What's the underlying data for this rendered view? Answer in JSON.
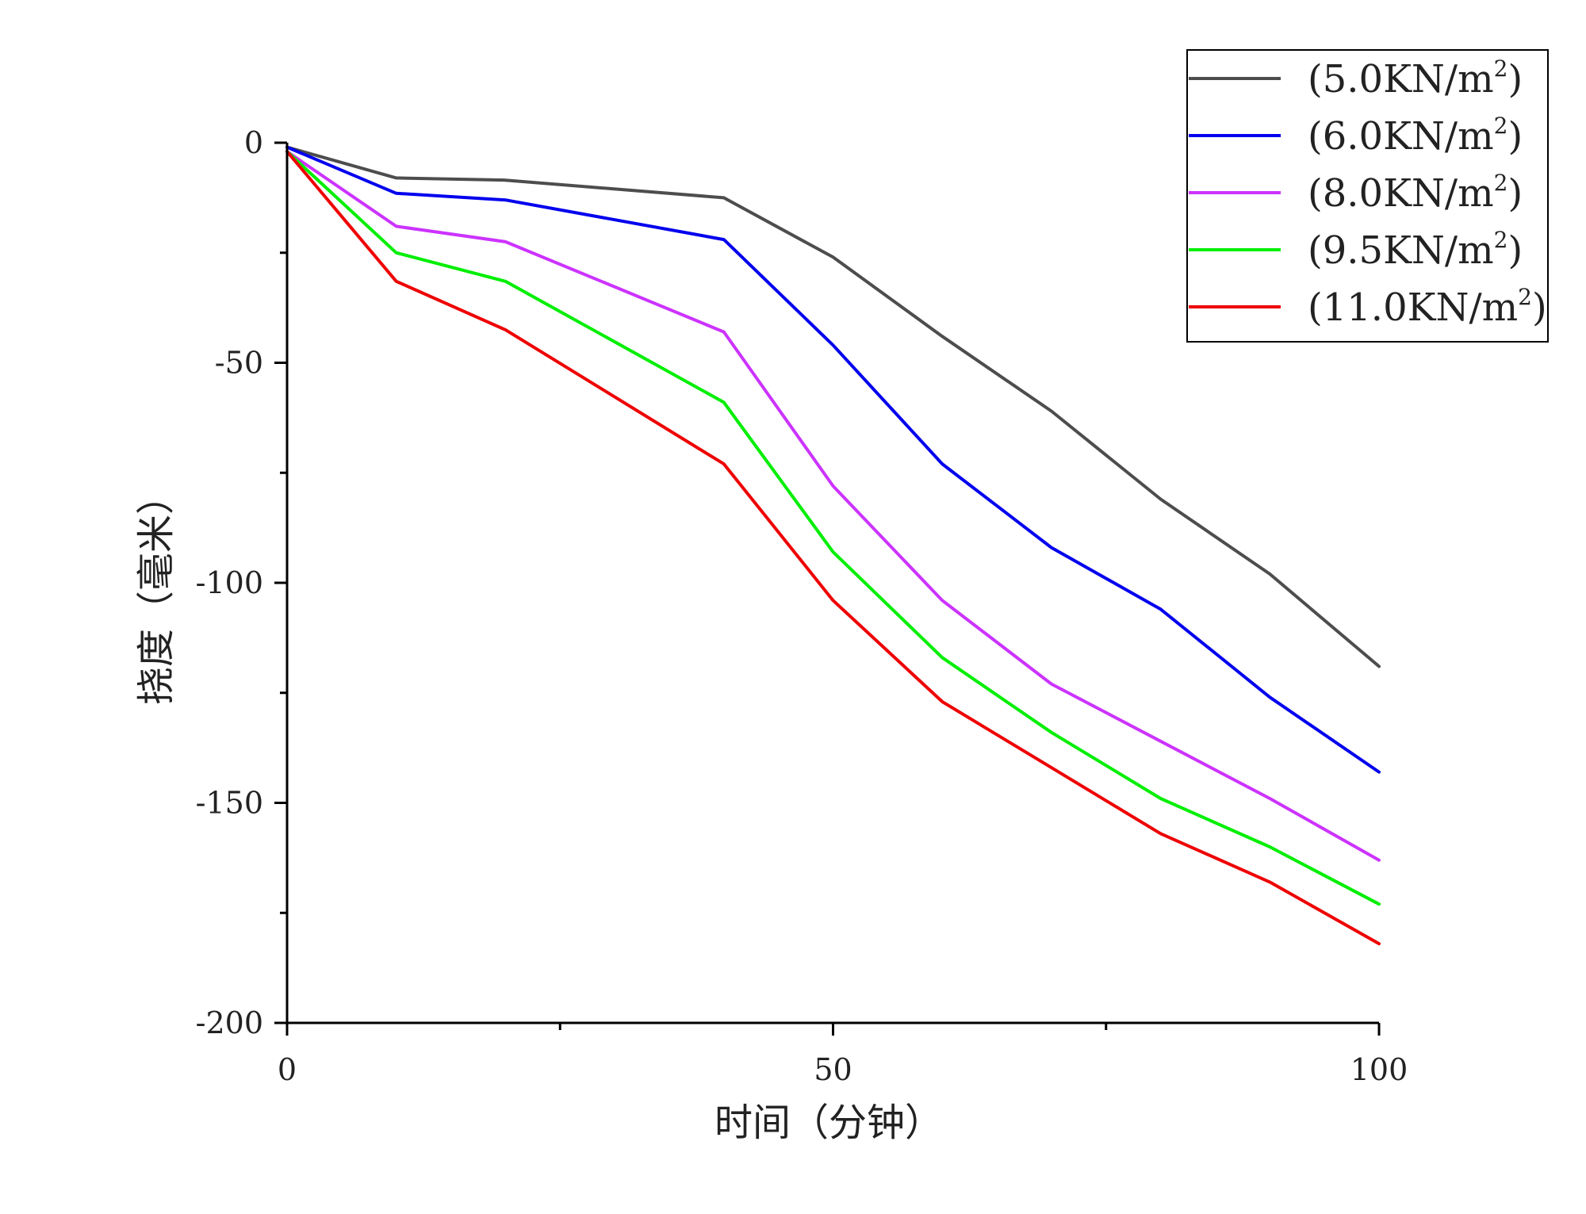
{
  "chart_data": {
    "type": "line",
    "title": "",
    "xlabel": "时间（分钟）",
    "ylabel": "挠度（毫米）",
    "xlim": [
      0,
      100
    ],
    "ylim": [
      -200,
      0
    ],
    "x_ticks": [
      0,
      50,
      100
    ],
    "y_ticks": [
      0,
      -50,
      -100,
      -150,
      -200
    ],
    "x_tick_labels": [
      "0",
      "50",
      "100"
    ],
    "y_tick_labels": [
      "0",
      "-50",
      "-100",
      "-150",
      "-200"
    ],
    "legend_position": "top-right",
    "legend_unit_base": "KN/m",
    "legend_unit_exp": "2",
    "x": [
      0,
      10,
      20,
      40,
      50,
      60,
      70,
      80,
      90,
      100
    ],
    "series": [
      {
        "name": "(5.0KN/m2)",
        "load": "5.0",
        "color": "#4d4d4d",
        "values": [
          -1,
          -8,
          -8.5,
          -12.5,
          -26,
          -44,
          -61,
          -81,
          -98,
          -119
        ]
      },
      {
        "name": "(6.0KN/m2)",
        "load": "6.0",
        "color": "#0000ee",
        "values": [
          -1,
          -11.5,
          -13,
          -22,
          -46,
          -73,
          -92,
          -106,
          -126,
          -143
        ]
      },
      {
        "name": "(8.0KN/m2)",
        "load": "8.0",
        "color": "#cc33ff",
        "values": [
          -2,
          -19,
          -22.5,
          -43,
          -78,
          -104,
          -123,
          -136,
          -149,
          -163
        ]
      },
      {
        "name": "(9.5KN/m2)",
        "load": "9.5",
        "color": "#00ee00",
        "values": [
          -2,
          -25,
          -31.5,
          -59,
          -93,
          -117,
          -134,
          -149,
          -160,
          -173
        ]
      },
      {
        "name": "(11.0KN/m2)",
        "load": "11.0",
        "color": "#ee0000",
        "values": [
          -2,
          -31.5,
          -42.5,
          -73,
          -104,
          -127,
          -142,
          -157,
          -168,
          -182
        ]
      }
    ]
  }
}
